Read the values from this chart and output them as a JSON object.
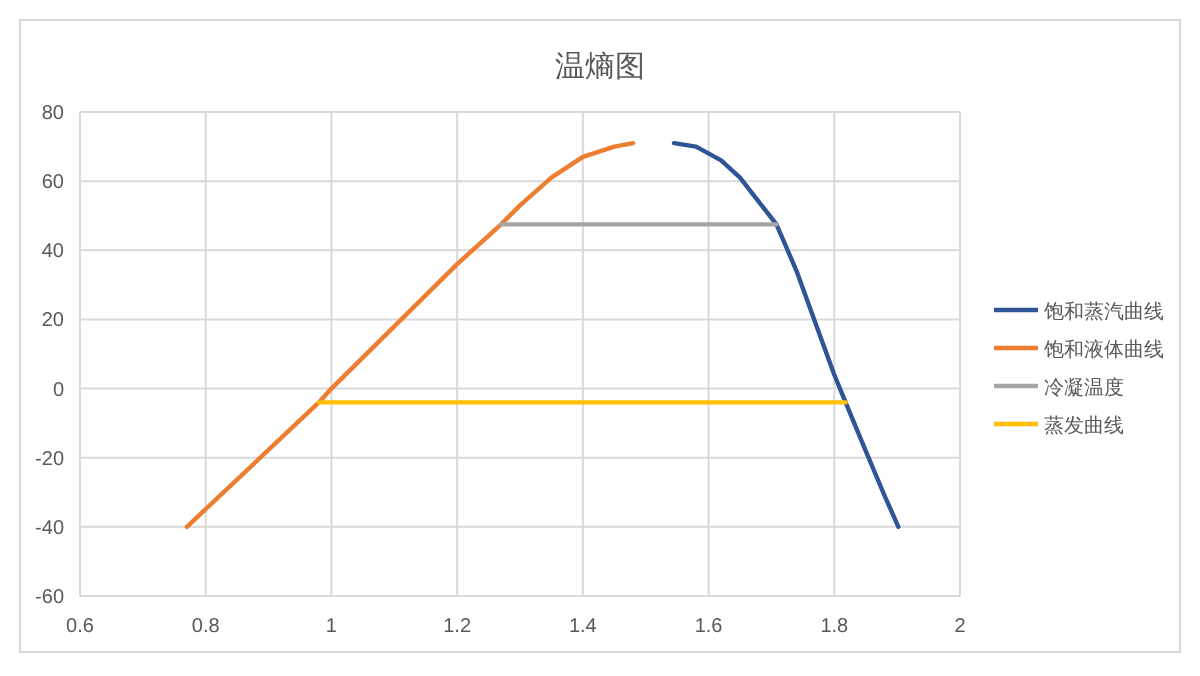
{
  "chart_data": {
    "type": "line",
    "title": "温熵图",
    "series": [
      {
        "name": "饱和蒸汽曲线",
        "color": "#2f5597",
        "x": [
          1.545,
          1.58,
          1.62,
          1.65,
          1.68,
          1.708,
          1.74,
          1.77,
          1.8,
          1.818,
          1.85,
          1.88,
          1.902
        ],
        "values": [
          71,
          70,
          66,
          61,
          54,
          47.5,
          34,
          19,
          4,
          -4,
          -18,
          -31,
          -40
        ]
      },
      {
        "name": "饱和液体曲线",
        "color": "#ed7d31",
        "x": [
          0.77,
          0.98,
          1.0,
          1.1,
          1.2,
          1.27,
          1.3,
          1.35,
          1.4,
          1.45,
          1.48
        ],
        "values": [
          -40,
          -4,
          0,
          18,
          36,
          47.5,
          53,
          61,
          67,
          70,
          71
        ]
      },
      {
        "name": "冷凝温度",
        "color": "#a5a5a5",
        "x": [
          1.27,
          1.708
        ],
        "values": [
          47.5,
          47.5
        ]
      },
      {
        "name": "蒸发曲线",
        "color": "#ffc000",
        "x": [
          0.98,
          1.818
        ],
        "values": [
          -4,
          -4
        ]
      }
    ],
    "xlim": [
      0.6,
      2.0
    ],
    "xticks": [
      0.6,
      0.8,
      1,
      1.2,
      1.4,
      1.6,
      1.8,
      2
    ],
    "ylim": [
      -60,
      80
    ],
    "yticks": [
      -60,
      -40,
      -20,
      0,
      20,
      40,
      60,
      80
    ],
    "grid": true,
    "legend": "right",
    "marker": "none",
    "line_style": "solid"
  }
}
